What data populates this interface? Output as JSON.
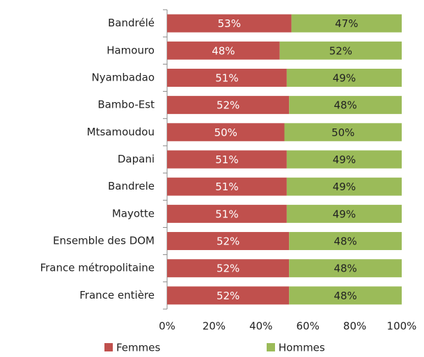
{
  "chart_data": {
    "type": "stacked-bar-horizontal",
    "categories": [
      "Bandrélé",
      "Hamouro",
      "Nyambadao",
      "Bambo-Est",
      "Mtsamoudou",
      "Dapani",
      "Bandrele",
      "Mayotte",
      "Ensemble des DOM",
      "France métropolitaine",
      "France entière"
    ],
    "series": [
      {
        "name": "Femmes",
        "color": "#c0504d",
        "values": [
          53,
          48,
          51,
          52,
          50,
          51,
          51,
          51,
          52,
          52,
          52
        ],
        "value_labels": [
          "53%",
          "48%",
          "51%",
          "52%",
          "50%",
          "51%",
          "51%",
          "51%",
          "52%",
          "52%",
          "52%"
        ]
      },
      {
        "name": "Hommes",
        "color": "#9bbb59",
        "values": [
          47,
          52,
          49,
          48,
          50,
          49,
          49,
          49,
          48,
          48,
          48
        ],
        "value_labels": [
          "47%",
          "52%",
          "49%",
          "48%",
          "50%",
          "49%",
          "49%",
          "49%",
          "48%",
          "48%",
          "48%"
        ]
      }
    ],
    "xlim": [
      0,
      100
    ],
    "xticks": [
      {
        "value": 0,
        "label": "0%"
      },
      {
        "value": 20,
        "label": "20%"
      },
      {
        "value": 40,
        "label": "40%"
      },
      {
        "value": 60,
        "label": "60%"
      },
      {
        "value": 80,
        "label": "80%"
      },
      {
        "value": 100,
        "label": "100%"
      }
    ],
    "legend": "bottom"
  }
}
